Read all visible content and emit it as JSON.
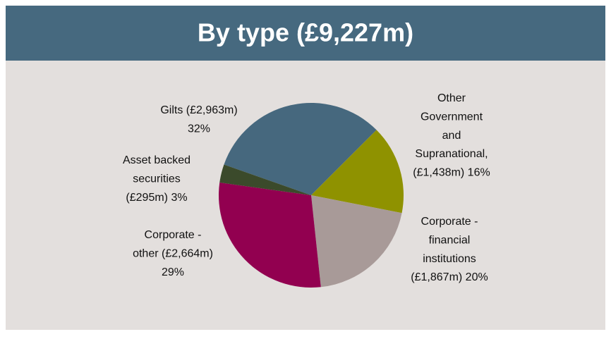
{
  "chart_data": {
    "type": "pie",
    "title": "By type (£9,227m)",
    "categories": [
      "Gilts",
      "Other Government and Supranational",
      "Corporate - financial institutions",
      "Corporate - other",
      "Asset backed securities"
    ],
    "values": [
      2963,
      1438,
      1867,
      2664,
      295
    ],
    "value_labels": [
      [
        "Gilts (£2,963m)",
        "32%"
      ],
      [
        "Other",
        "Government",
        "and",
        "Supranational,",
        "(£1,438m) 16%"
      ],
      [
        "Corporate -",
        "financial",
        "institutions",
        "(£1,867m) 20%"
      ],
      [
        "Corporate -",
        "other (£2,664m)",
        "29%"
      ],
      [
        "Asset backed",
        "securities",
        "(£295m) 3%"
      ]
    ],
    "colors": [
      "#46687e",
      "#8f9200",
      "#a89a98",
      "#920050",
      "#3b4a2b"
    ]
  }
}
